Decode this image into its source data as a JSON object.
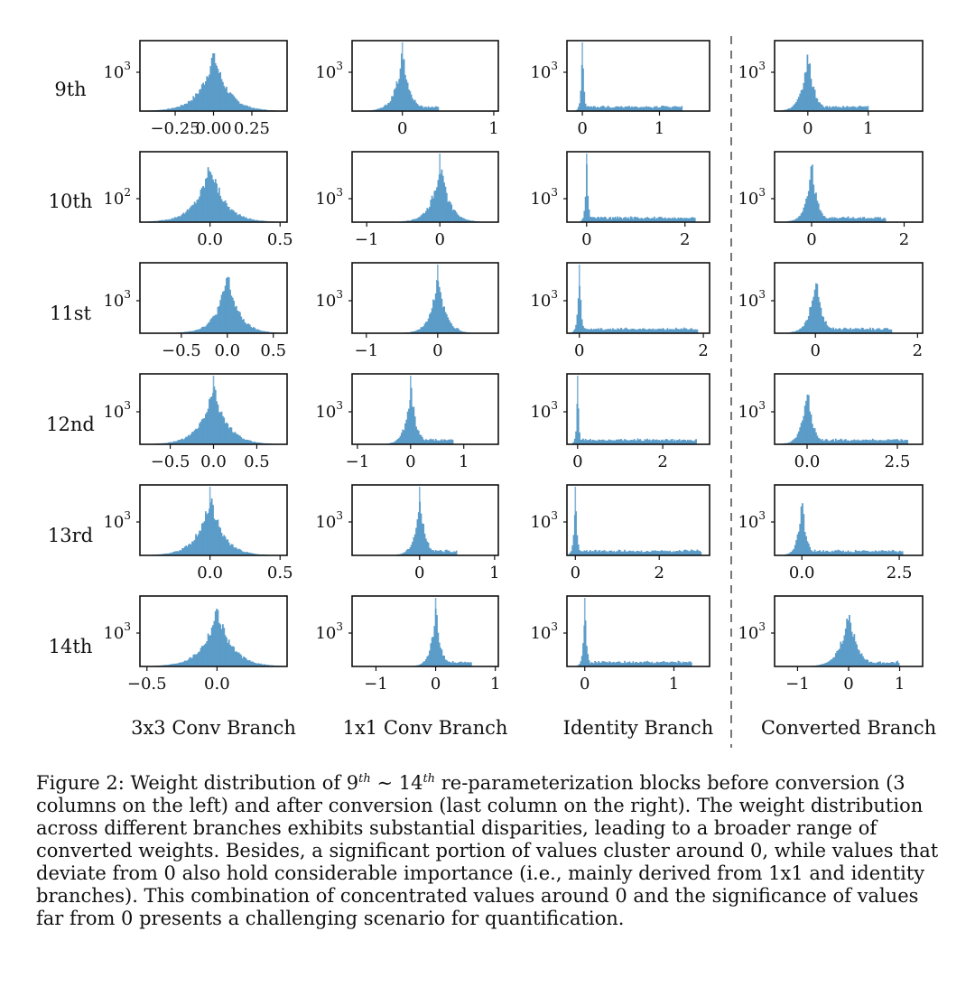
{
  "figure": {
    "row_labels": [
      "9th",
      "10th",
      "11st",
      "12nd",
      "13rd",
      "14th"
    ],
    "column_labels": [
      "3x3 Conv Branch",
      "1x1 Conv Branch",
      "Identity Branch",
      "Converted Branch"
    ],
    "bar_color": "#5b9cc9",
    "divider_note": "dashed line separates the 3 pre-conversion columns from the converted column"
  },
  "chart_data": [
    {
      "type": "histogram",
      "row": "9th",
      "column": "3x3 Conv Branch",
      "xlim": [
        -0.48,
        0.48
      ],
      "peak": 0.0,
      "spread": 0.09,
      "spike": false,
      "tail": 0,
      "ytick": "10^3",
      "xticks": [
        {
          "v": -0.25,
          "t": "−0.25"
        },
        {
          "v": 0.0,
          "t": "0.00"
        },
        {
          "v": 0.25,
          "t": "0.25"
        }
      ]
    },
    {
      "type": "histogram",
      "row": "9th",
      "column": "1x1 Conv Branch",
      "xlim": [
        -0.55,
        1.05
      ],
      "peak": 0.0,
      "spread": 0.08,
      "spike": true,
      "tail": 0.4,
      "ytick": "10^3",
      "xticks": [
        {
          "v": 0,
          "t": "0"
        },
        {
          "v": 1,
          "t": "1"
        }
      ]
    },
    {
      "type": "histogram",
      "row": "9th",
      "column": "Identity Branch",
      "xlim": [
        -0.2,
        1.65
      ],
      "peak": 0.0,
      "spread": 0.02,
      "spike": true,
      "tail": 1.3,
      "ytick": "10^3",
      "xticks": [
        {
          "v": 0,
          "t": "0"
        },
        {
          "v": 1,
          "t": "1"
        }
      ]
    },
    {
      "type": "histogram",
      "row": "9th",
      "column": "Converted Branch",
      "xlim": [
        -0.55,
        1.9
      ],
      "peak": 0.0,
      "spread": 0.1,
      "spike": false,
      "tail": 1.0,
      "ytick": "10^3",
      "xticks": [
        {
          "v": 0,
          "t": "0"
        },
        {
          "v": 1,
          "t": "1"
        }
      ]
    },
    {
      "type": "histogram",
      "row": "10th",
      "column": "3x3 Conv Branch",
      "xlim": [
        -0.5,
        0.55
      ],
      "peak": 0.0,
      "spread": 0.1,
      "spike": false,
      "tail": 0,
      "ytick": "10^2",
      "xticks": [
        {
          "v": 0,
          "t": "0.0"
        },
        {
          "v": 0.5,
          "t": "0.5"
        }
      ]
    },
    {
      "type": "histogram",
      "row": "10th",
      "column": "1x1 Conv Branch",
      "xlim": [
        -1.2,
        0.8
      ],
      "peak": 0.0,
      "spread": 0.12,
      "spike": true,
      "tail": 0.3,
      "ytick": "10^3",
      "xticks": [
        {
          "v": -1,
          "t": "−1"
        },
        {
          "v": 0,
          "t": "0"
        }
      ]
    },
    {
      "type": "histogram",
      "row": "10th",
      "column": "Identity Branch",
      "xlim": [
        -0.4,
        2.5
      ],
      "peak": 0.0,
      "spread": 0.03,
      "spike": true,
      "tail": 2.2,
      "ytick": "10^3",
      "xticks": [
        {
          "v": 0,
          "t": "0"
        },
        {
          "v": 2,
          "t": "2"
        }
      ]
    },
    {
      "type": "histogram",
      "row": "10th",
      "column": "Converted Branch",
      "xlim": [
        -0.8,
        2.4
      ],
      "peak": 0.0,
      "spread": 0.12,
      "spike": false,
      "tail": 1.6,
      "ytick": "10^3",
      "xticks": [
        {
          "v": 0,
          "t": "0"
        },
        {
          "v": 2,
          "t": "2"
        }
      ]
    },
    {
      "type": "histogram",
      "row": "11st",
      "column": "3x3 Conv Branch",
      "xlim": [
        -0.95,
        0.65
      ],
      "peak": 0.0,
      "spread": 0.12,
      "spike": false,
      "tail": 0,
      "ytick": "10^3",
      "xticks": [
        {
          "v": -0.5,
          "t": "−0.5"
        },
        {
          "v": 0,
          "t": "0.0"
        },
        {
          "v": 0.5,
          "t": "0.5"
        }
      ]
    },
    {
      "type": "histogram",
      "row": "11st",
      "column": "1x1 Conv Branch",
      "xlim": [
        -1.2,
        0.85
      ],
      "peak": 0.0,
      "spread": 0.1,
      "spike": true,
      "tail": 0.3,
      "ytick": "10^3",
      "xticks": [
        {
          "v": -1,
          "t": "−1"
        },
        {
          "v": 0,
          "t": "0"
        }
      ]
    },
    {
      "type": "histogram",
      "row": "11st",
      "column": "Identity Branch",
      "xlim": [
        -0.2,
        2.1
      ],
      "peak": 0.0,
      "spread": 0.03,
      "spike": true,
      "tail": 1.9,
      "ytick": "10^3",
      "xticks": [
        {
          "v": 0,
          "t": "0"
        },
        {
          "v": 2,
          "t": "2"
        }
      ]
    },
    {
      "type": "histogram",
      "row": "11st",
      "column": "Converted Branch",
      "xlim": [
        -0.8,
        2.1
      ],
      "peak": 0.0,
      "spread": 0.12,
      "spike": false,
      "tail": 1.5,
      "ytick": "10^3",
      "xticks": [
        {
          "v": 0,
          "t": "0"
        },
        {
          "v": 2,
          "t": "2"
        }
      ]
    },
    {
      "type": "histogram",
      "row": "12nd",
      "column": "3x3 Conv Branch",
      "xlim": [
        -0.85,
        0.85
      ],
      "peak": 0.0,
      "spread": 0.15,
      "spike": true,
      "tail": 0,
      "ytick": "10^3",
      "xticks": [
        {
          "v": -0.5,
          "t": "−0.5"
        },
        {
          "v": 0,
          "t": "0.0"
        },
        {
          "v": 0.5,
          "t": "0.5"
        }
      ]
    },
    {
      "type": "histogram",
      "row": "12nd",
      "column": "1x1 Conv Branch",
      "xlim": [
        -1.1,
        1.65
      ],
      "peak": 0.0,
      "spread": 0.1,
      "spike": true,
      "tail": 0.8,
      "ytick": "10^3",
      "xticks": [
        {
          "v": -1,
          "t": "−1"
        },
        {
          "v": 0,
          "t": "0"
        },
        {
          "v": 1,
          "t": "1"
        }
      ]
    },
    {
      "type": "histogram",
      "row": "12nd",
      "column": "Identity Branch",
      "xlim": [
        -0.25,
        3.1
      ],
      "peak": 0.0,
      "spread": 0.03,
      "spike": true,
      "tail": 2.8,
      "ytick": "10^3",
      "xticks": [
        {
          "v": 0,
          "t": "0"
        },
        {
          "v": 2,
          "t": "2"
        }
      ]
    },
    {
      "type": "histogram",
      "row": "12nd",
      "column": "Converted Branch",
      "xlim": [
        -0.9,
        3.2
      ],
      "peak": 0.0,
      "spread": 0.15,
      "spike": false,
      "tail": 2.8,
      "ytick": "10^3",
      "xticks": [
        {
          "v": 0,
          "t": "0.0"
        },
        {
          "v": 2.5,
          "t": "2.5"
        }
      ]
    },
    {
      "type": "histogram",
      "row": "13rd",
      "column": "3x3 Conv Branch",
      "xlim": [
        -0.5,
        0.55
      ],
      "peak": 0.0,
      "spread": 0.09,
      "spike": true,
      "tail": 0,
      "ytick": "10^3",
      "xticks": [
        {
          "v": 0,
          "t": "0.0"
        },
        {
          "v": 0.5,
          "t": "0.5"
        }
      ]
    },
    {
      "type": "histogram",
      "row": "13rd",
      "column": "1x1 Conv Branch",
      "xlim": [
        -0.9,
        1.05
      ],
      "peak": 0.0,
      "spread": 0.07,
      "spike": true,
      "tail": 0.5,
      "ytick": "10^3",
      "xticks": [
        {
          "v": 0,
          "t": "0"
        },
        {
          "v": 1,
          "t": "1"
        }
      ]
    },
    {
      "type": "histogram",
      "row": "13rd",
      "column": "Identity Branch",
      "xlim": [
        -0.2,
        3.2
      ],
      "peak": 0.0,
      "spread": 0.04,
      "spike": true,
      "tail": 3.0,
      "ytick": "10^3",
      "xticks": [
        {
          "v": 0,
          "t": "0"
        },
        {
          "v": 2,
          "t": "2"
        }
      ]
    },
    {
      "type": "histogram",
      "row": "13rd",
      "column": "Converted Branch",
      "xlim": [
        -0.7,
        3.1
      ],
      "peak": 0.0,
      "spread": 0.1,
      "spike": false,
      "tail": 2.6,
      "ytick": "10^3",
      "xticks": [
        {
          "v": 0,
          "t": "0.0"
        },
        {
          "v": 2.5,
          "t": "2.5"
        }
      ]
    },
    {
      "type": "histogram",
      "row": "14th",
      "column": "3x3 Conv Branch",
      "xlim": [
        -0.55,
        0.5
      ],
      "peak": 0.0,
      "spread": 0.1,
      "spike": false,
      "tail": 0,
      "ytick": "10^3",
      "xticks": [
        {
          "v": -0.5,
          "t": "−0.5"
        },
        {
          "v": 0,
          "t": "0.0"
        }
      ]
    },
    {
      "type": "histogram",
      "row": "14th",
      "column": "1x1 Conv Branch",
      "xlim": [
        -1.4,
        1.05
      ],
      "peak": 0.0,
      "spread": 0.08,
      "spike": true,
      "tail": 0.6,
      "ytick": "10^3",
      "xticks": [
        {
          "v": -1,
          "t": "−1"
        },
        {
          "v": 0,
          "t": "0"
        },
        {
          "v": 1,
          "t": "1"
        }
      ]
    },
    {
      "type": "histogram",
      "row": "14th",
      "column": "Identity Branch",
      "xlim": [
        -0.2,
        1.4
      ],
      "peak": 0.0,
      "spread": 0.02,
      "spike": true,
      "tail": 1.2,
      "ytick": "10^3",
      "xticks": [
        {
          "v": 0,
          "t": "0"
        },
        {
          "v": 1,
          "t": "1"
        }
      ]
    },
    {
      "type": "histogram",
      "row": "14th",
      "column": "Converted Branch",
      "xlim": [
        -1.45,
        1.45
      ],
      "peak": 0.0,
      "spread": 0.16,
      "spike": false,
      "tail": 1.0,
      "ytick": "10^3",
      "xticks": [
        {
          "v": -1,
          "t": "−1"
        },
        {
          "v": 0,
          "t": "0"
        },
        {
          "v": 1,
          "t": "1"
        }
      ]
    }
  ],
  "caption": {
    "prefix": "Figure 2: Weight distribution of 9",
    "sup1": "th",
    "mid": " ∼ 14",
    "sup2": "th",
    "rest": " re-parameterization blocks before conversion (3 columns on the left) and after conversion (last column on the right). The weight distribution across different branches exhibits substantial disparities, leading to a broader range of converted weights. Besides, a significant portion of values cluster around 0, while values that deviate from 0 also hold considerable importance (i.e., mainly derived from 1x1 and identity branches). This combination of concentrated values around 0 and the significance of values far from 0 presents a challenging scenario for quantification."
  }
}
